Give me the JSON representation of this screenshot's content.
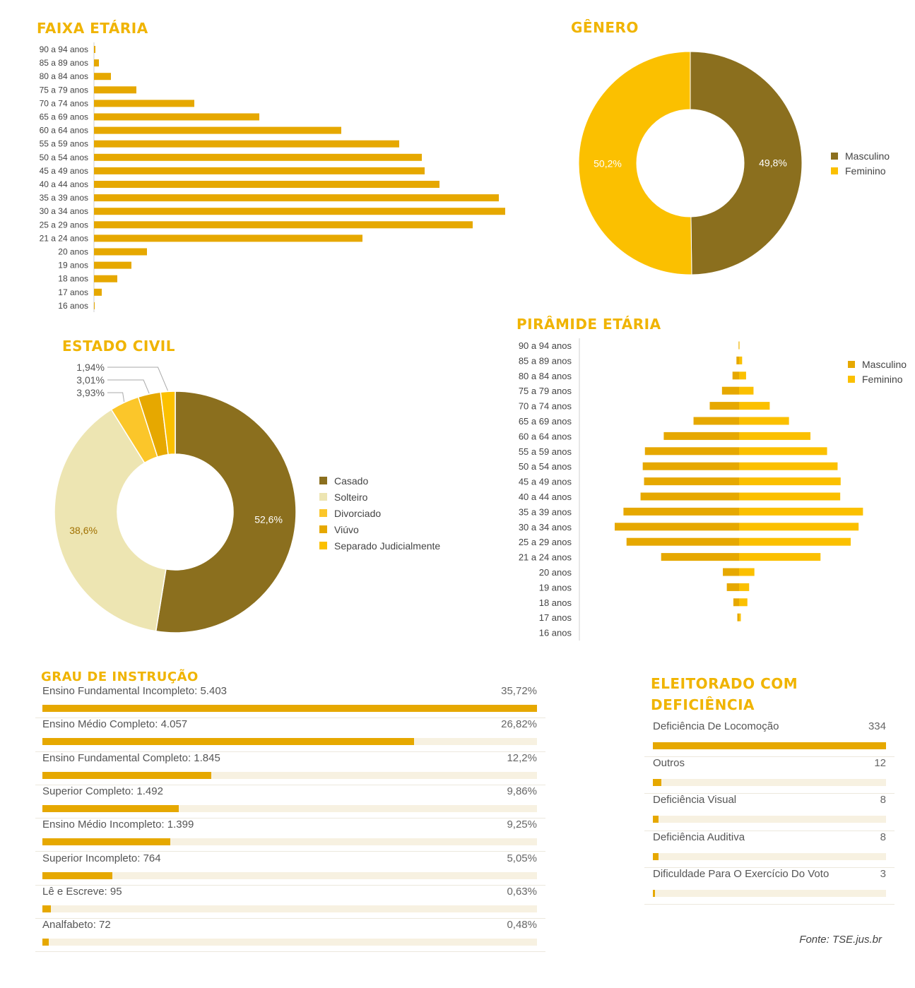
{
  "titles": {
    "faixa": "FAIXA ETÁRIA",
    "genero": "GÊNERO",
    "estado": "ESTADO CIVIL",
    "piramide": "PIRÂMIDE ETÁRIA",
    "grau": "GRAU DE INSTRUÇÃO",
    "deficiencia": "ELEITORADO COM DEFICIÊNCIA"
  },
  "source": "Fonte: TSE.jus.br",
  "colors": {
    "accent": "#e6a800",
    "dark": "#8b6f1e",
    "yellow": "#fbc000",
    "pale": "#ede5b2",
    "track": "#f7f1e1",
    "title": "#f0b400"
  },
  "chart_data": [
    {
      "type": "bar",
      "orientation": "horizontal",
      "title": "FAIXA ETÁRIA",
      "categories": [
        "90 a 94 anos",
        "85 a 89 anos",
        "80 a 84 anos",
        "75 a 79 anos",
        "70 a 74 anos",
        "65 a 69 anos",
        "60 a 64 anos",
        "55 a 59 anos",
        "50 a 54 anos",
        "45 a 49 anos",
        "40 a 44 anos",
        "35 a 39 anos",
        "30 a 34 anos",
        "25 a 29 anos",
        "21 a 24 anos",
        "20 anos",
        "19 anos",
        "18 anos",
        "17 anos",
        "16 anos"
      ],
      "values": [
        2,
        7,
        24,
        60,
        142,
        234,
        350,
        432,
        464,
        468,
        489,
        573,
        582,
        536,
        380,
        75,
        53,
        33,
        11,
        1
      ],
      "grid": false,
      "legend": "none"
    },
    {
      "type": "pie",
      "title": "GÊNERO",
      "donut": true,
      "slices": [
        {
          "label": "Masculino",
          "value": 49.8,
          "text": "49,8%",
          "color": "#8b6f1e"
        },
        {
          "label": "Feminino",
          "value": 50.2,
          "text": "50,2%",
          "color": "#fbc000"
        }
      ],
      "legend": "right"
    },
    {
      "type": "pie",
      "title": "ESTADO CIVIL",
      "donut": true,
      "slices": [
        {
          "label": "Casado",
          "value": 52.6,
          "text": "52,6%",
          "color": "#8b6f1e"
        },
        {
          "label": "Solteiro",
          "value": 38.6,
          "text": "38,6%",
          "color": "#ede5b2"
        },
        {
          "label": "Divorciado",
          "value": 3.93,
          "text": "3,93%",
          "color": "#fbc62a"
        },
        {
          "label": "Viúvo",
          "value": 3.01,
          "text": "3,01%",
          "color": "#e6a800"
        },
        {
          "label": "Separado Judicialmente",
          "value": 1.94,
          "text": "1,94%",
          "color": "#fbc000"
        }
      ],
      "legend": "right"
    },
    {
      "type": "bar",
      "orientation": "horizontal",
      "title": "PIRÂMIDE ETÁRIA",
      "categories": [
        "90 a 94 anos",
        "85 a 89 anos",
        "80 a 84 anos",
        "75 a 79 anos",
        "70 a 74 anos",
        "65 a 69 anos",
        "60 a 64 anos",
        "55 a 59 anos",
        "50 a 54 anos",
        "45 a 49 anos",
        "40 a 44 anos",
        "35 a 39 anos",
        "30 a 34 anos",
        "25 a 29 anos",
        "21 a 24 anos",
        "20 anos",
        "19 anos",
        "18 anos",
        "17 anos",
        "16 anos"
      ],
      "series": [
        {
          "name": "Masculino",
          "values": [
            1,
            6,
            15,
            39,
            67,
            104,
            172,
            215,
            220,
            217,
            225,
            264,
            284,
            257,
            178,
            37,
            28,
            13,
            4,
            0
          ],
          "color": "#e6a800"
        },
        {
          "name": "Feminino",
          "values": [
            1,
            7,
            16,
            33,
            70,
            114,
            163,
            201,
            225,
            232,
            231,
            283,
            273,
            255,
            186,
            35,
            23,
            19,
            4,
            0
          ],
          "color": "#fbc000"
        }
      ],
      "grid": false,
      "legend": "top-right"
    },
    {
      "type": "bar",
      "orientation": "horizontal",
      "title": "GRAU DE INSTRUÇÃO",
      "rows": [
        {
          "label": "Ensino Fundamental Incompleto: 5.403",
          "pct_text": "35,72%",
          "pct": 35.72
        },
        {
          "label": "Ensino Médio Completo: 4.057",
          "pct_text": "26,82%",
          "pct": 26.82
        },
        {
          "label": "Ensino Fundamental Completo: 1.845",
          "pct_text": "12,2%",
          "pct": 12.2
        },
        {
          "label": "Superior Completo: 1.492",
          "pct_text": "9,86%",
          "pct": 9.86
        },
        {
          "label": "Ensino Médio Incompleto: 1.399",
          "pct_text": "9,25%",
          "pct": 9.25
        },
        {
          "label": "Superior Incompleto: 764",
          "pct_text": "5,05%",
          "pct": 5.05
        },
        {
          "label": "Lê e Escreve: 95",
          "pct_text": "0,63%",
          "pct": 0.63
        },
        {
          "label": "Analfabeto: 72",
          "pct_text": "0,48%",
          "pct": 0.48
        }
      ],
      "scale_max": 35.72
    },
    {
      "type": "bar",
      "orientation": "horizontal",
      "title": "ELEITORADO COM DEFICIÊNCIA",
      "rows": [
        {
          "label": "Deficiência De Locomoção",
          "value_text": "334",
          "value": 334
        },
        {
          "label": "Outros",
          "value_text": "12",
          "value": 12
        },
        {
          "label": "Deficiência Visual",
          "value_text": "8",
          "value": 8
        },
        {
          "label": "Deficiência Auditiva",
          "value_text": "8",
          "value": 8
        },
        {
          "label": "Dificuldade Para O Exercício Do Voto",
          "value_text": "3",
          "value": 3
        }
      ],
      "scale_max": 334
    }
  ]
}
